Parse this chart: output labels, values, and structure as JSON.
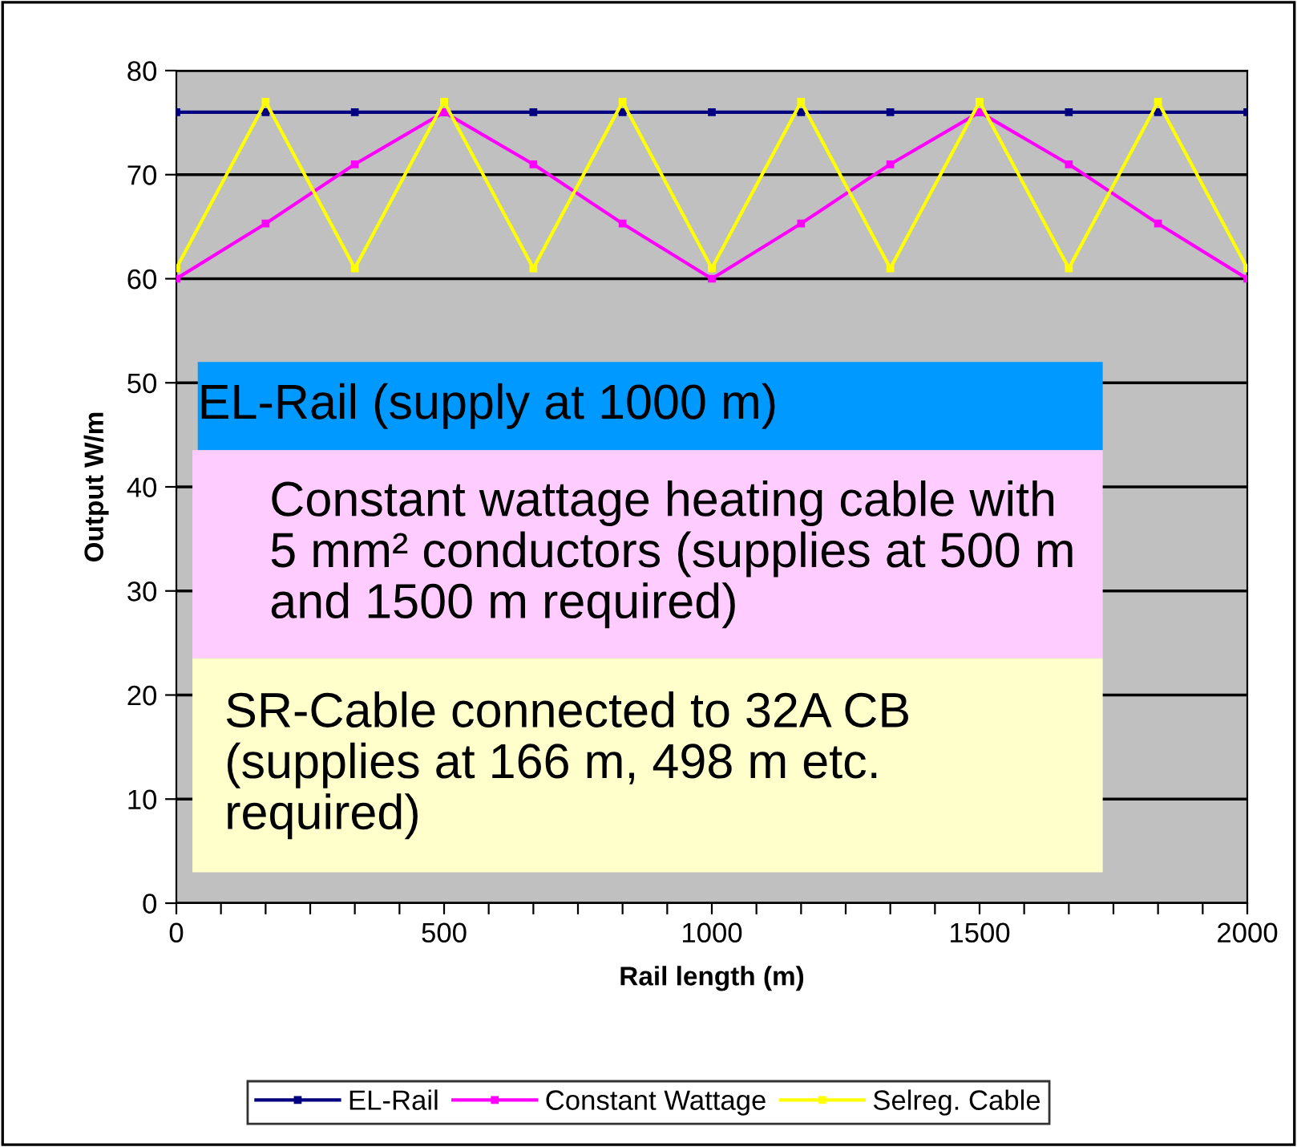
{
  "chart_data": {
    "type": "line",
    "xlabel": "Rail length (m)",
    "ylabel": "Output W/m",
    "x": [
      0,
      166.7,
      333.3,
      500,
      666.7,
      833.3,
      1000,
      1166.7,
      1333.3,
      1500,
      1666.7,
      1833.3,
      2000
    ],
    "series": [
      {
        "name": "EL-Rail",
        "color": "#000080",
        "values": [
          76,
          76,
          76,
          76,
          76,
          76,
          76,
          76,
          76,
          76,
          76,
          76,
          76
        ]
      },
      {
        "name": "Constant Wattage",
        "color": "#ff00ff",
        "values": [
          60,
          65.3,
          71,
          76,
          71,
          65.3,
          60,
          65.3,
          71,
          76,
          71,
          65.3,
          60
        ]
      },
      {
        "name": "Selreg. Cable",
        "color": "#ffff00",
        "values": [
          61,
          77,
          61,
          77,
          61,
          77,
          61,
          77,
          61,
          77,
          61,
          77,
          61
        ]
      }
    ],
    "xlim": [
      0,
      2000
    ],
    "xticks": [
      0,
      {
        "value": 83.3,
        "label": null
      },
      {
        "value": 166.7,
        "label": null
      },
      {
        "value": 250,
        "label": null
      },
      {
        "value": 333.3,
        "label": null
      },
      {
        "value": 416.7,
        "label": null
      },
      500,
      {
        "value": 583.3,
        "label": null
      },
      {
        "value": 666.7,
        "label": null
      },
      {
        "value": 750,
        "label": null
      },
      {
        "value": 833.3,
        "label": null
      },
      {
        "value": 916.7,
        "label": null
      },
      1000,
      {
        "value": 1083.3,
        "label": null
      },
      {
        "value": 1166.7,
        "label": null
      },
      {
        "value": 1250,
        "label": null
      },
      {
        "value": 1333.3,
        "label": null
      },
      {
        "value": 1416.7,
        "label": null
      },
      1500,
      {
        "value": 1583.3,
        "label": null
      },
      {
        "value": 1666.7,
        "label": null
      },
      {
        "value": 1750,
        "label": null
      },
      {
        "value": 1833.3,
        "label": null
      },
      {
        "value": 1916.7,
        "label": null
      },
      2000
    ],
    "ylim": [
      0,
      80
    ],
    "yticks": [
      0,
      10,
      20,
      30,
      40,
      50,
      60,
      70,
      80
    ],
    "grid": "y",
    "legend": "bottom",
    "marker": "square",
    "line_style": "solid",
    "annotations": [
      "EL-Rail (supply at 1000 m)",
      "Constant wattage heating cable with\n5 mm² conductors (supplies at 500 m\nand 1500 m required)",
      "SR-Cable connected to 32A CB\n(supplies at 166 m, 498 m etc.\nrequired)"
    ]
  }
}
